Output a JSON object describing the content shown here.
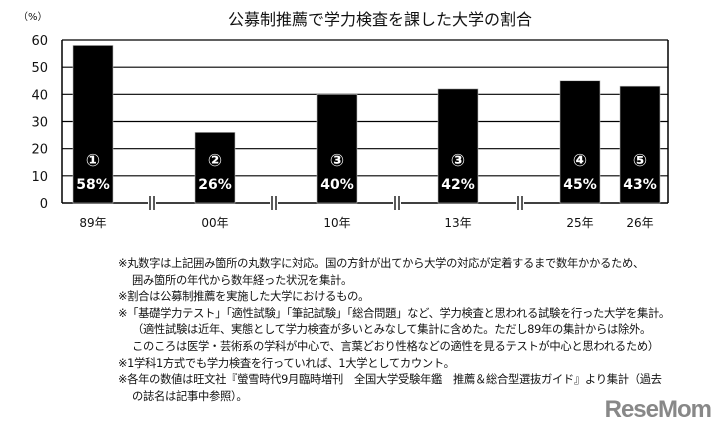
{
  "chart_data": {
    "type": "bar",
    "title": "公募制推薦で学力検査を課した大学の割合",
    "ylabel": "（%）",
    "ylim": [
      0,
      60
    ],
    "yticks": [
      0,
      10,
      20,
      30,
      40,
      50,
      60
    ],
    "grid": true,
    "categories": [
      "89年",
      "00年",
      "10年",
      "13年",
      "25年",
      "26年"
    ],
    "values": [
      58,
      26,
      40,
      42,
      45,
      43
    ],
    "value_labels": [
      "58%",
      "26%",
      "40%",
      "42%",
      "45%",
      "43%"
    ],
    "markers": [
      "①",
      "②",
      "③",
      "③",
      "④",
      "⑤"
    ],
    "axis_breaks": [
      "89年-00年",
      "00年-10年",
      "10年-13年",
      "13年-25年"
    ]
  },
  "notes": [
    "※丸数字は上記囲み箇所の丸数字に対応。国の方針が出てから大学の対応が定着するまで数年かかるため、",
    "囲み箇所の年代から数年経った状況を集計。",
    "※割合は公募制推薦を実施した大学におけるもの。",
    "※「基礎学力テスト」「適性試験」「筆記試験」「総合問題」など、学力検査と思われる試験を行った大学を集計。",
    "（適性試験は近年、実態として学力検査が多いとみなして集計に含めた。ただし89年の集計からは除外。",
    "このころは医学・芸術系の学科が中心で、言葉どおり性格などの適性を見るテストが中心と思われるため）",
    "※1学科1方式でも学力検査を行っていれば、1大学としてカウント。",
    "※各年の数値は旺文社『螢雪時代9月臨時増刊　全国大学受験年鑑　推薦＆総合型選抜ガイド』より集計（過去",
    "の誌名は記事中参照）。"
  ],
  "logo": "ReseMom"
}
